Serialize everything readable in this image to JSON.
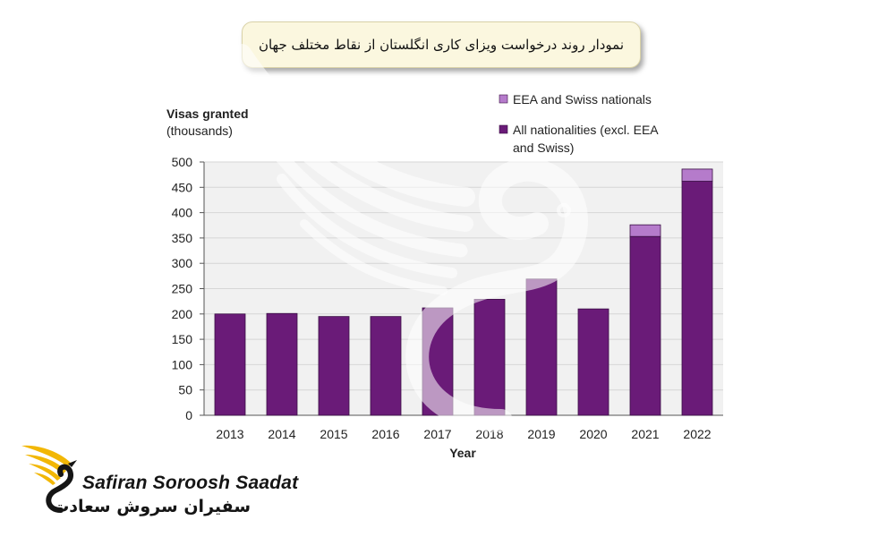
{
  "banner": {
    "title": "نمودار روند درخواست ویزای کاری انگلستان از نقاط مختلف جهان"
  },
  "brand": {
    "name_en": "Safiran Soroosh Saadat",
    "name_fa": "سفیران سروش سعادت",
    "logo_icon": "winged-swan-icon",
    "logo_color": "#f2b705"
  },
  "chart_data": {
    "type": "bar",
    "stacked": true,
    "title": "",
    "ylabel_line1": "Visas granted",
    "ylabel_line2": "(thousands)",
    "xlabel": "Year",
    "categories": [
      "2013",
      "2014",
      "2015",
      "2016",
      "2017",
      "2018",
      "2019",
      "2020",
      "2021",
      "2022"
    ],
    "ylim": [
      0,
      500
    ],
    "yticks": [
      0,
      50,
      100,
      150,
      200,
      250,
      300,
      350,
      400,
      450,
      500
    ],
    "grid": true,
    "legend_position": "top-right",
    "series": [
      {
        "name": "All nationalities (excl. EEA and Swiss)",
        "legend_lines": [
          "All nationalities (excl. EEA",
          "and Swiss)"
        ],
        "color": "#6a1b78",
        "values": [
          200,
          201,
          195,
          195,
          212,
          229,
          269,
          210,
          353,
          462
        ]
      },
      {
        "name": "EEA and Swiss nationals",
        "legend_lines": [
          "EEA and Swiss nationals"
        ],
        "color": "#b57bcb",
        "values": [
          0,
          0,
          0,
          0,
          0,
          0,
          0,
          0,
          23,
          24
        ]
      }
    ]
  }
}
